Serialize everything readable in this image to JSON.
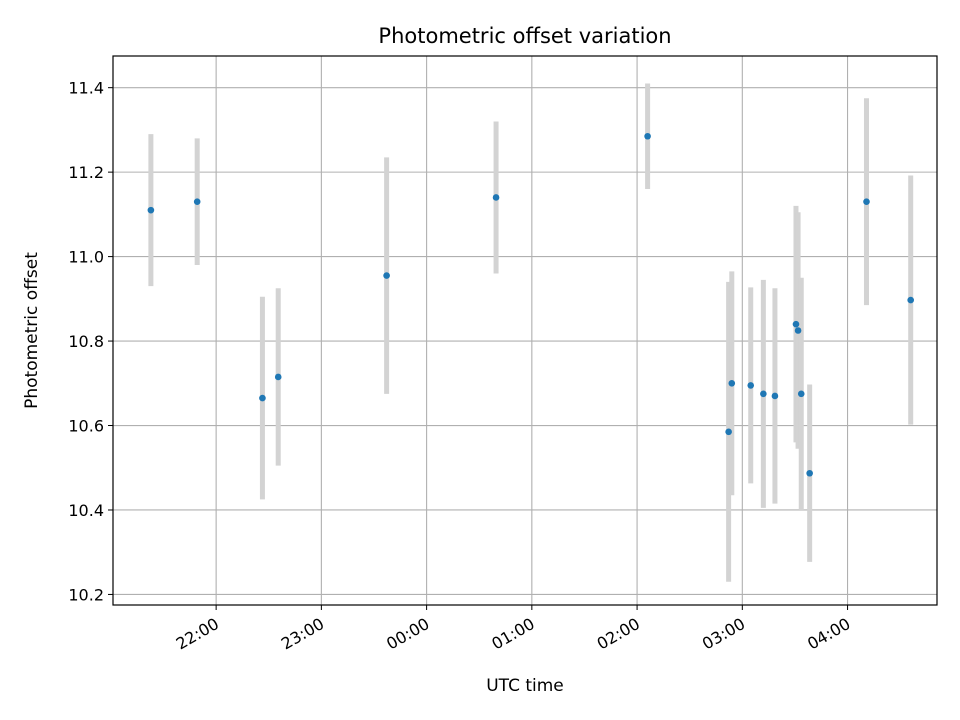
{
  "chart_data": {
    "type": "scatter",
    "title": "Photometric offset variation",
    "xlabel": "UTC time",
    "ylabel": "Photometric offset",
    "x_unit": "hours (UTC, continuing past midnight)",
    "xlim": [
      21.02,
      28.85
    ],
    "ylim": [
      10.175,
      11.475
    ],
    "grid": true,
    "x_ticks": [
      {
        "x": 22,
        "label": "22:00"
      },
      {
        "x": 23,
        "label": "23:00"
      },
      {
        "x": 24,
        "label": "00:00"
      },
      {
        "x": 25,
        "label": "01:00"
      },
      {
        "x": 26,
        "label": "02:00"
      },
      {
        "x": 27,
        "label": "03:00"
      },
      {
        "x": 28,
        "label": "04:00"
      }
    ],
    "y_ticks": [
      {
        "y": 10.2,
        "label": "10.2"
      },
      {
        "y": 10.4,
        "label": "10.4"
      },
      {
        "y": 10.6,
        "label": "10.6"
      },
      {
        "y": 10.8,
        "label": "10.8"
      },
      {
        "y": 11.0,
        "label": "11.0"
      },
      {
        "y": 11.2,
        "label": "11.2"
      },
      {
        "y": 11.4,
        "label": "11.4"
      }
    ],
    "colors": {
      "point": "#1f77b4",
      "errorbar": "#d3d3d3",
      "grid": "#b0b0b0"
    },
    "points": [
      {
        "x": 21.38,
        "y": 11.11,
        "err": 0.18
      },
      {
        "x": 21.82,
        "y": 11.13,
        "err": 0.15
      },
      {
        "x": 22.44,
        "y": 10.665,
        "err": 0.24
      },
      {
        "x": 22.59,
        "y": 10.715,
        "err": 0.21
      },
      {
        "x": 23.62,
        "y": 10.955,
        "err": 0.28
      },
      {
        "x": 24.66,
        "y": 11.14,
        "err": 0.18
      },
      {
        "x": 26.1,
        "y": 11.285,
        "err": 0.125
      },
      {
        "x": 26.87,
        "y": 10.585,
        "err": 0.355
      },
      {
        "x": 26.9,
        "y": 10.7,
        "err": 0.265
      },
      {
        "x": 27.08,
        "y": 10.695,
        "err": 0.232
      },
      {
        "x": 27.2,
        "y": 10.675,
        "err": 0.27
      },
      {
        "x": 27.31,
        "y": 10.67,
        "err": 0.255
      },
      {
        "x": 27.51,
        "y": 10.84,
        "err": 0.28
      },
      {
        "x": 27.53,
        "y": 10.825,
        "err": 0.28
      },
      {
        "x": 27.56,
        "y": 10.675,
        "err": 0.275
      },
      {
        "x": 27.64,
        "y": 10.487,
        "err": 0.21
      },
      {
        "x": 28.18,
        "y": 11.13,
        "err": 0.245
      },
      {
        "x": 28.6,
        "y": 10.897,
        "err": 0.295
      }
    ]
  }
}
